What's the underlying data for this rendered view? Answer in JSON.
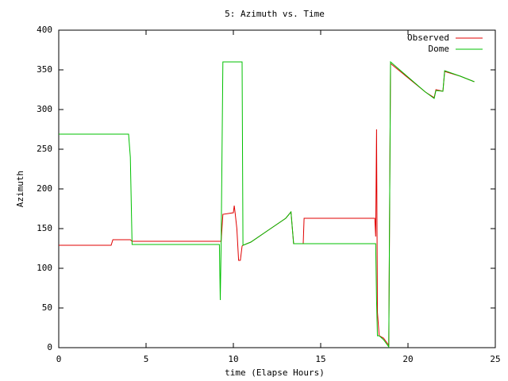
{
  "chart_data": {
    "type": "line",
    "title": "5: Azimuth vs. Time",
    "x_label": "time (Elapse Hours)",
    "y_label": "Azimuth",
    "x": [
      0,
      3.0,
      3.1,
      4.0,
      4.1,
      4.2,
      9.2,
      9.25,
      9.3,
      9.4,
      10.0,
      10.05,
      10.1,
      10.2,
      10.3,
      10.4,
      10.5,
      10.55,
      11,
      12,
      13,
      13.3,
      13.45,
      14,
      14.05,
      18.1,
      18.15,
      18.2,
      18.25,
      18.35,
      18.6,
      18.9,
      19.0,
      20,
      21,
      21.5,
      21.6,
      22,
      22.1,
      23,
      23.8
    ],
    "series": [
      {
        "name": "Observed",
        "color": "#e00000",
        "values": [
          129,
          129,
          136,
          136,
          136,
          134,
          134,
          134,
          134,
          168,
          170,
          179,
          170,
          150,
          110,
          110,
          128,
          129,
          133,
          148,
          163,
          171,
          131,
          131,
          163,
          163,
          140,
          275,
          45,
          15,
          12,
          3,
          358,
          340,
          322,
          315,
          325,
          323,
          348,
          342,
          335
        ]
      },
      {
        "name": "Dome",
        "color": "#00c000",
        "values": [
          269,
          269,
          269,
          269,
          240,
          130,
          130,
          60,
          130,
          360,
          360,
          360,
          360,
          360,
          360,
          360,
          360,
          129,
          133,
          148,
          163,
          171,
          131,
          131,
          131,
          131,
          131,
          60,
          15,
          15,
          10,
          1,
          360,
          341,
          322,
          314,
          324,
          323,
          349,
          342,
          335
        ]
      }
    ],
    "xlim": [
      0,
      25
    ],
    "xticks": [
      0,
      5,
      10,
      15,
      20,
      25
    ],
    "ylim": [
      0,
      400
    ],
    "yticks": [
      0,
      50,
      100,
      150,
      200,
      250,
      300,
      350,
      400
    ],
    "grid": false,
    "legend": "top-right"
  }
}
